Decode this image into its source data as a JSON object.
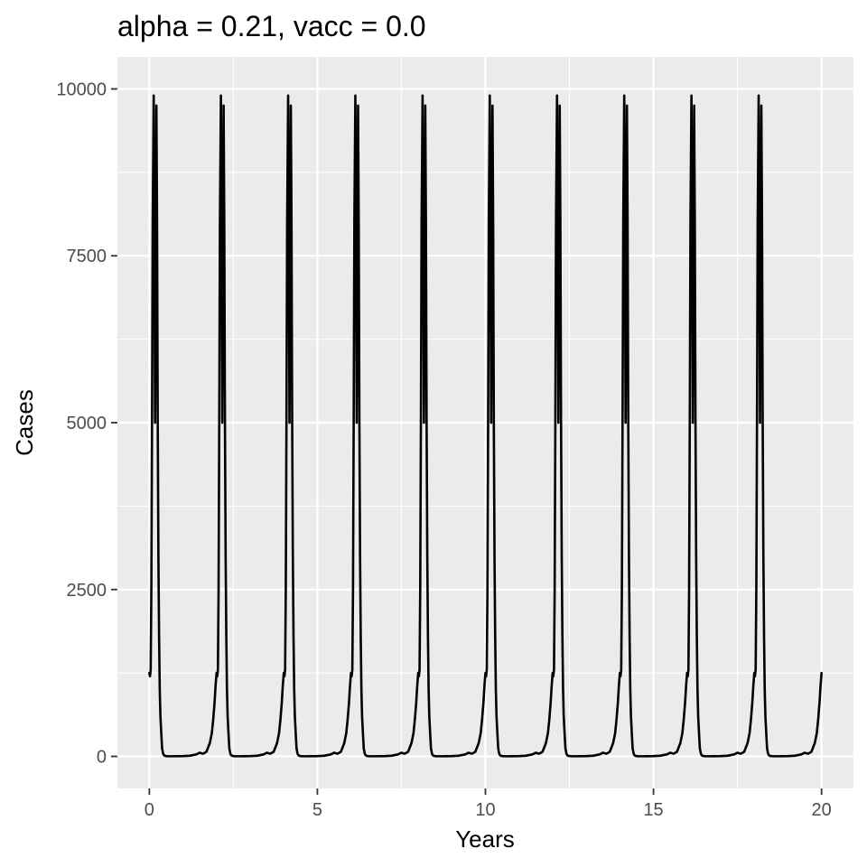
{
  "chart_data": {
    "type": "line",
    "title": "alpha = 0.21, vacc = 0.0",
    "xlabel": "Years",
    "ylabel": "Cases",
    "xlim": [
      -0.95,
      20.95
    ],
    "ylim": [
      -480,
      10480
    ],
    "x_ticks": [
      0,
      5,
      10,
      15,
      20
    ],
    "x_tick_labels": [
      "0",
      "5",
      "10",
      "15",
      "20"
    ],
    "y_ticks": [
      0,
      2500,
      5000,
      7500,
      10000
    ],
    "y_tick_labels": [
      "0",
      "2500",
      "5000",
      "7500",
      "10000"
    ],
    "grid": true,
    "legend": "none",
    "period_years": 2,
    "series": [
      {
        "color": "#000000",
        "x": [
          0,
          0.02,
          0.04,
          0.06,
          0.08,
          0.1,
          0.13,
          0.15,
          0.17,
          0.19,
          0.21,
          0.23,
          0.25,
          0.27,
          0.29,
          0.31,
          0.33,
          0.36,
          0.38,
          0.41,
          0.44,
          0.47,
          0.5,
          0.55,
          0.6,
          0.7,
          0.8,
          1.0,
          1.2,
          1.4,
          1.5,
          1.6,
          1.7,
          1.8,
          1.86,
          1.9,
          1.94,
          1.97,
          2.0,
          2.02,
          2.04,
          2.06,
          2.08,
          2.1,
          2.13,
          2.15,
          2.17,
          2.19,
          2.21,
          2.23,
          2.25,
          2.27,
          2.29,
          2.31,
          2.33,
          2.36,
          2.38,
          2.41,
          2.44,
          2.47,
          2.5,
          2.55,
          2.6,
          2.7,
          2.8,
          3.0,
          3.2,
          3.4,
          3.5,
          3.6,
          3.7,
          3.8,
          3.86,
          3.9,
          3.94,
          3.97,
          4.0,
          4.02,
          4.04,
          4.06,
          4.08,
          4.1,
          4.13,
          4.15,
          4.17,
          4.19,
          4.21,
          4.23,
          4.25,
          4.27,
          4.29,
          4.31,
          4.33,
          4.36,
          4.38,
          4.41,
          4.44,
          4.47,
          4.5,
          4.55,
          4.6,
          4.7,
          4.8,
          5.0,
          5.2,
          5.4,
          5.5,
          5.6,
          5.7,
          5.8,
          5.86,
          5.9,
          5.94,
          5.97,
          6.0,
          6.02,
          6.04,
          6.06,
          6.08,
          6.1,
          6.13,
          6.15,
          6.17,
          6.19,
          6.21,
          6.23,
          6.25,
          6.27,
          6.29,
          6.31,
          6.33,
          6.36,
          6.38,
          6.41,
          6.44,
          6.47,
          6.5,
          6.55,
          6.6,
          6.7,
          6.8,
          7.0,
          7.2,
          7.4,
          7.5,
          7.6,
          7.7,
          7.8,
          7.86,
          7.9,
          7.94,
          7.97,
          8.0,
          8.02,
          8.04,
          8.06,
          8.08,
          8.1,
          8.13,
          8.15,
          8.17,
          8.19,
          8.21,
          8.23,
          8.25,
          8.27,
          8.29,
          8.31,
          8.33,
          8.36,
          8.38,
          8.41,
          8.44,
          8.47,
          8.5,
          8.55,
          8.6,
          8.7,
          8.8,
          9.0,
          9.2,
          9.4,
          9.5,
          9.6,
          9.7,
          9.8,
          9.86,
          9.9,
          9.94,
          9.97,
          10.0,
          10.02,
          10.04,
          10.06,
          10.08,
          10.1,
          10.13,
          10.15,
          10.17,
          10.19,
          10.21,
          10.23,
          10.25,
          10.27,
          10.29,
          10.31,
          10.33,
          10.36,
          10.38,
          10.41,
          10.44,
          10.47,
          10.5,
          10.55,
          10.6,
          10.7,
          10.8,
          11.0,
          11.2,
          11.4,
          11.5,
          11.6,
          11.7,
          11.8,
          11.86,
          11.9,
          11.94,
          11.97,
          12.0,
          12.02,
          12.04,
          12.06,
          12.08,
          12.1,
          12.13,
          12.15,
          12.17,
          12.19,
          12.21,
          12.23,
          12.25,
          12.27,
          12.29,
          12.31,
          12.33,
          12.36,
          12.38,
          12.41,
          12.44,
          12.47,
          12.5,
          12.55,
          12.6,
          12.7,
          12.8,
          13.0,
          13.2,
          13.4,
          13.5,
          13.6,
          13.7,
          13.8,
          13.86,
          13.9,
          13.94,
          13.97,
          14.0,
          14.02,
          14.04,
          14.06,
          14.08,
          14.1,
          14.13,
          14.15,
          14.17,
          14.19,
          14.21,
          14.23,
          14.25,
          14.27,
          14.29,
          14.31,
          14.33,
          14.36,
          14.38,
          14.41,
          14.44,
          14.47,
          14.5,
          14.55,
          14.6,
          14.7,
          14.8,
          15.0,
          15.2,
          15.4,
          15.5,
          15.6,
          15.7,
          15.8,
          15.86,
          15.9,
          15.94,
          15.97,
          16.0,
          16.02,
          16.04,
          16.06,
          16.08,
          16.1,
          16.13,
          16.15,
          16.17,
          16.19,
          16.21,
          16.23,
          16.25,
          16.27,
          16.29,
          16.31,
          16.33,
          16.36,
          16.38,
          16.41,
          16.44,
          16.47,
          16.5,
          16.55,
          16.6,
          16.7,
          16.8,
          17.0,
          17.2,
          17.4,
          17.5,
          17.6,
          17.7,
          17.8,
          17.86,
          17.9,
          17.94,
          17.97,
          18.0,
          18.02,
          18.04,
          18.06,
          18.08,
          18.1,
          18.13,
          18.15,
          18.17,
          18.19,
          18.21,
          18.23,
          18.25,
          18.27,
          18.29,
          18.31,
          18.33,
          18.36,
          18.38,
          18.41,
          18.44,
          18.47,
          18.5,
          18.55,
          18.6,
          18.7,
          18.8,
          19.0,
          19.2,
          19.4,
          19.5,
          19.6,
          19.7,
          19.8,
          19.86,
          19.9,
          19.94,
          19.97,
          20.0
        ],
        "y": [
          1250,
          1200,
          1300,
          2500,
          5000,
          8000,
          9900,
          8000,
          5000,
          7000,
          9750,
          8000,
          5000,
          3000,
          1800,
          1000,
          600,
          300,
          120,
          40,
          15,
          8,
          5,
          3,
          2,
          2,
          3,
          5,
          10,
          30,
          55,
          40,
          70,
          200,
          350,
          550,
          800,
          1050,
          1250,
          1200,
          1300,
          2500,
          5000,
          8000,
          9900,
          8000,
          5000,
          7000,
          9750,
          8000,
          5000,
          3000,
          1800,
          1000,
          600,
          300,
          120,
          40,
          15,
          8,
          5,
          3,
          2,
          2,
          3,
          5,
          10,
          30,
          55,
          40,
          70,
          200,
          350,
          550,
          800,
          1050,
          1250,
          1200,
          1300,
          2500,
          5000,
          8000,
          9900,
          8000,
          5000,
          7000,
          9750,
          8000,
          5000,
          3000,
          1800,
          1000,
          600,
          300,
          120,
          40,
          15,
          8,
          5,
          3,
          2,
          2,
          3,
          5,
          10,
          30,
          55,
          40,
          70,
          200,
          350,
          550,
          800,
          1050,
          1250,
          1200,
          1300,
          2500,
          5000,
          8000,
          9900,
          8000,
          5000,
          7000,
          9750,
          8000,
          5000,
          3000,
          1800,
          1000,
          600,
          300,
          120,
          40,
          15,
          8,
          5,
          3,
          2,
          2,
          3,
          5,
          10,
          30,
          55,
          40,
          70,
          200,
          350,
          550,
          800,
          1050,
          1250,
          1200,
          1300,
          2500,
          5000,
          8000,
          9900,
          8000,
          5000,
          7000,
          9750,
          8000,
          5000,
          3000,
          1800,
          1000,
          600,
          300,
          120,
          40,
          15,
          8,
          5,
          3,
          2,
          2,
          3,
          5,
          10,
          30,
          55,
          40,
          70,
          200,
          350,
          550,
          800,
          1050,
          1250,
          1200,
          1300,
          2500,
          5000,
          8000,
          9900,
          8000,
          5000,
          7000,
          9750,
          8000,
          5000,
          3000,
          1800,
          1000,
          600,
          300,
          120,
          40,
          15,
          8,
          5,
          3,
          2,
          2,
          3,
          5,
          10,
          30,
          55,
          40,
          70,
          200,
          350,
          550,
          800,
          1050,
          1250,
          1200,
          1300,
          2500,
          5000,
          8000,
          9900,
          8000,
          5000,
          7000,
          9750,
          8000,
          5000,
          3000,
          1800,
          1000,
          600,
          300,
          120,
          40,
          15,
          8,
          5,
          3,
          2,
          2,
          3,
          5,
          10,
          30,
          55,
          40,
          70,
          200,
          350,
          550,
          800,
          1050,
          1250,
          1200,
          1300,
          2500,
          5000,
          8000,
          9900,
          8000,
          5000,
          7000,
          9750,
          8000,
          5000,
          3000,
          1800,
          1000,
          600,
          300,
          120,
          40,
          15,
          8,
          5,
          3,
          2,
          2,
          3,
          5,
          10,
          30,
          55,
          40,
          70,
          200,
          350,
          550,
          800,
          1050,
          1250,
          1200,
          1300,
          2500,
          5000,
          8000,
          9900,
          8000,
          5000,
          7000,
          9750,
          8000,
          5000,
          3000,
          1800,
          1000,
          600,
          300,
          120,
          40,
          15,
          8,
          5,
          3,
          2,
          2,
          3,
          5,
          10,
          30,
          55,
          40,
          70,
          200,
          350,
          550,
          800,
          1050,
          1250,
          1200,
          1300,
          2500,
          5000,
          8000,
          9900,
          8000,
          5000,
          7000,
          9750,
          8000,
          5000,
          3000,
          1800,
          1000,
          600,
          300,
          120,
          40,
          15,
          8,
          5,
          3,
          2,
          2,
          3,
          5,
          10,
          30,
          55,
          40,
          70,
          200,
          350,
          550,
          800,
          1050,
          1250
        ]
      }
    ]
  },
  "theme": {
    "panel_background": "#ebebeb",
    "grid_color": "#ffffff",
    "line_color": "#000000",
    "tick_color": "#333333"
  }
}
